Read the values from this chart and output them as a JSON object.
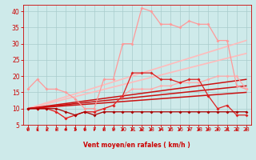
{
  "background_color": "#ceeaea",
  "grid_color": "#a8cccc",
  "xlabel": "Vent moyen/en rafales ( km/h )",
  "xlabel_color": "#cc0000",
  "tick_color": "#cc0000",
  "x_ticks": [
    0,
    1,
    2,
    3,
    4,
    5,
    6,
    7,
    8,
    9,
    10,
    11,
    12,
    13,
    14,
    15,
    16,
    17,
    18,
    19,
    20,
    21,
    22,
    23
  ],
  "ylim": [
    5,
    42
  ],
  "xlim": [
    -0.5,
    23.5
  ],
  "yticks": [
    5,
    10,
    15,
    20,
    25,
    30,
    35,
    40
  ],
  "lines": [
    {
      "name": "light_pink_upper",
      "color": "#ff9999",
      "lw": 0.9,
      "marker": "D",
      "markersize": 2.0,
      "zorder": 3,
      "data_x": [
        0,
        1,
        2,
        3,
        4,
        5,
        6,
        7,
        8,
        9,
        10,
        11,
        12,
        13,
        14,
        15,
        16,
        17,
        18,
        19,
        20,
        21,
        22,
        23
      ],
      "data_y": [
        16,
        19,
        16,
        16,
        15,
        13,
        10,
        10,
        19,
        19,
        30,
        30,
        41,
        40,
        36,
        36,
        35,
        37,
        36,
        36,
        31,
        31,
        17,
        16
      ]
    },
    {
      "name": "light_pink_lower",
      "color": "#ffaaaa",
      "lw": 0.9,
      "marker": "D",
      "markersize": 2.0,
      "zorder": 3,
      "data_x": [
        0,
        1,
        2,
        3,
        4,
        5,
        6,
        7,
        8,
        9,
        10,
        11,
        12,
        13,
        14,
        15,
        16,
        17,
        18,
        19,
        20,
        21,
        22,
        23
      ],
      "data_y": [
        10,
        10,
        10,
        9,
        7,
        8,
        9,
        9,
        10,
        11,
        14,
        16,
        16,
        16,
        17,
        17,
        18,
        18,
        18,
        19,
        20,
        20,
        20,
        16
      ]
    },
    {
      "name": "trend_line1",
      "color": "#ffbbbb",
      "lw": 1.2,
      "marker": null,
      "markersize": 0,
      "zorder": 2,
      "data_x": [
        0,
        23
      ],
      "data_y": [
        10,
        31
      ]
    },
    {
      "name": "trend_line2",
      "color": "#ffbbbb",
      "lw": 1.2,
      "marker": null,
      "markersize": 0,
      "zorder": 2,
      "data_x": [
        0,
        23
      ],
      "data_y": [
        10,
        27
      ]
    },
    {
      "name": "dark_red_upper",
      "color": "#dd2222",
      "lw": 0.9,
      "marker": "D",
      "markersize": 2.0,
      "zorder": 4,
      "data_x": [
        0,
        1,
        2,
        3,
        4,
        5,
        6,
        7,
        8,
        9,
        10,
        11,
        12,
        13,
        14,
        15,
        16,
        17,
        18,
        19,
        20,
        21,
        22,
        23
      ],
      "data_y": [
        10,
        10,
        10,
        9,
        7,
        8,
        9,
        9,
        10,
        11,
        14,
        21,
        21,
        21,
        19,
        19,
        18,
        19,
        19,
        14,
        10,
        11,
        8,
        8
      ]
    },
    {
      "name": "dark_red_flat",
      "color": "#aa0000",
      "lw": 0.9,
      "marker": "D",
      "markersize": 2.0,
      "zorder": 4,
      "data_x": [
        0,
        1,
        2,
        3,
        4,
        5,
        6,
        7,
        8,
        9,
        10,
        11,
        12,
        13,
        14,
        15,
        16,
        17,
        18,
        19,
        20,
        21,
        22,
        23
      ],
      "data_y": [
        10,
        10,
        10,
        10,
        9,
        8,
        9,
        8,
        9,
        9,
        9,
        9,
        9,
        9,
        9,
        9,
        9,
        9,
        9,
        9,
        9,
        9,
        9,
        9
      ]
    },
    {
      "name": "dark_trend1",
      "color": "#cc1111",
      "lw": 1.1,
      "marker": null,
      "markersize": 0,
      "zorder": 2,
      "data_x": [
        0,
        23
      ],
      "data_y": [
        10,
        19
      ]
    },
    {
      "name": "dark_trend2",
      "color": "#cc1111",
      "lw": 1.1,
      "marker": null,
      "markersize": 0,
      "zorder": 2,
      "data_x": [
        0,
        23
      ],
      "data_y": [
        10,
        17
      ]
    },
    {
      "name": "dark_trend3",
      "color": "#cc1111",
      "lw": 1.1,
      "marker": null,
      "markersize": 0,
      "zorder": 2,
      "data_x": [
        0,
        23
      ],
      "data_y": [
        10,
        15
      ]
    }
  ]
}
